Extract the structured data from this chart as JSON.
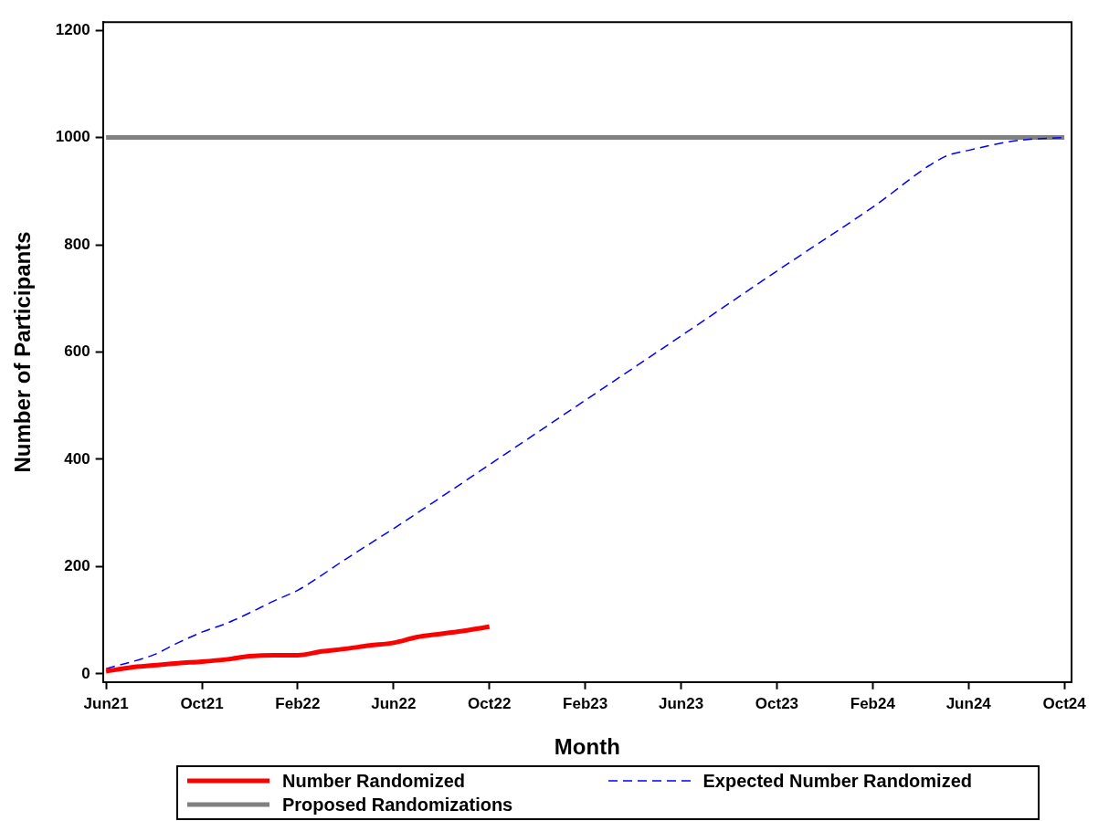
{
  "chart_data": {
    "type": "line",
    "xlabel": "Month",
    "ylabel": "Number of Participants",
    "xlim": [
      "2021-05-27",
      "2024-10-10"
    ],
    "ylim": [
      -15,
      1215
    ],
    "xticks": [
      {
        "value": "2021-06",
        "label": "Jun21"
      },
      {
        "value": "2021-10",
        "label": "Oct21"
      },
      {
        "value": "2022-02",
        "label": "Feb22"
      },
      {
        "value": "2022-06",
        "label": "Jun22"
      },
      {
        "value": "2022-10",
        "label": "Oct22"
      },
      {
        "value": "2023-02",
        "label": "Feb23"
      },
      {
        "value": "2023-06",
        "label": "Jun23"
      },
      {
        "value": "2023-10",
        "label": "Oct23"
      },
      {
        "value": "2024-02",
        "label": "Feb24"
      },
      {
        "value": "2024-06",
        "label": "Jun24"
      },
      {
        "value": "2024-10",
        "label": "Oct24"
      }
    ],
    "yticks": [
      0,
      200,
      400,
      600,
      800,
      1000,
      1200
    ],
    "grid": false,
    "legend": "bottom",
    "marker": "none",
    "series": [
      {
        "name": "Number Randomized",
        "color": "#ff0000",
        "line_style": "solid",
        "x": [
          "2021-06",
          "2021-07",
          "2021-08",
          "2021-09",
          "2021-10",
          "2021-11",
          "2021-12",
          "2022-01",
          "2022-02",
          "2022-03",
          "2022-04",
          "2022-05",
          "2022-06",
          "2022-07",
          "2022-08",
          "2022-09",
          "2022-10"
        ],
        "values": [
          5,
          12,
          16,
          20,
          23,
          27,
          33,
          35,
          35,
          42,
          47,
          53,
          58,
          69,
          75,
          81,
          88
        ]
      },
      {
        "name": "Expected Number Randomized",
        "color": "#0000ff",
        "line_style": "dashed",
        "x": [
          "2021-06",
          "2021-08",
          "2021-09",
          "2021-10",
          "2021-11",
          "2021-12",
          "2022-01",
          "2022-02",
          "2022-04",
          "2022-06",
          "2022-08",
          "2022-10",
          "2023-02",
          "2023-06",
          "2023-10",
          "2024-02",
          "2024-05",
          "2024-06",
          "2024-08",
          "2024-10"
        ],
        "values": [
          10,
          36,
          58,
          78,
          94,
          114,
          136,
          156,
          214,
          271,
          330,
          390,
          510,
          630,
          751,
          870,
          964,
          976,
          994,
          1000
        ]
      },
      {
        "name": "Proposed Randomizations",
        "color": "#808080",
        "line_style": "solid",
        "x": [
          "2021-06",
          "2024-10"
        ],
        "values": [
          1000,
          1000
        ]
      }
    ]
  }
}
